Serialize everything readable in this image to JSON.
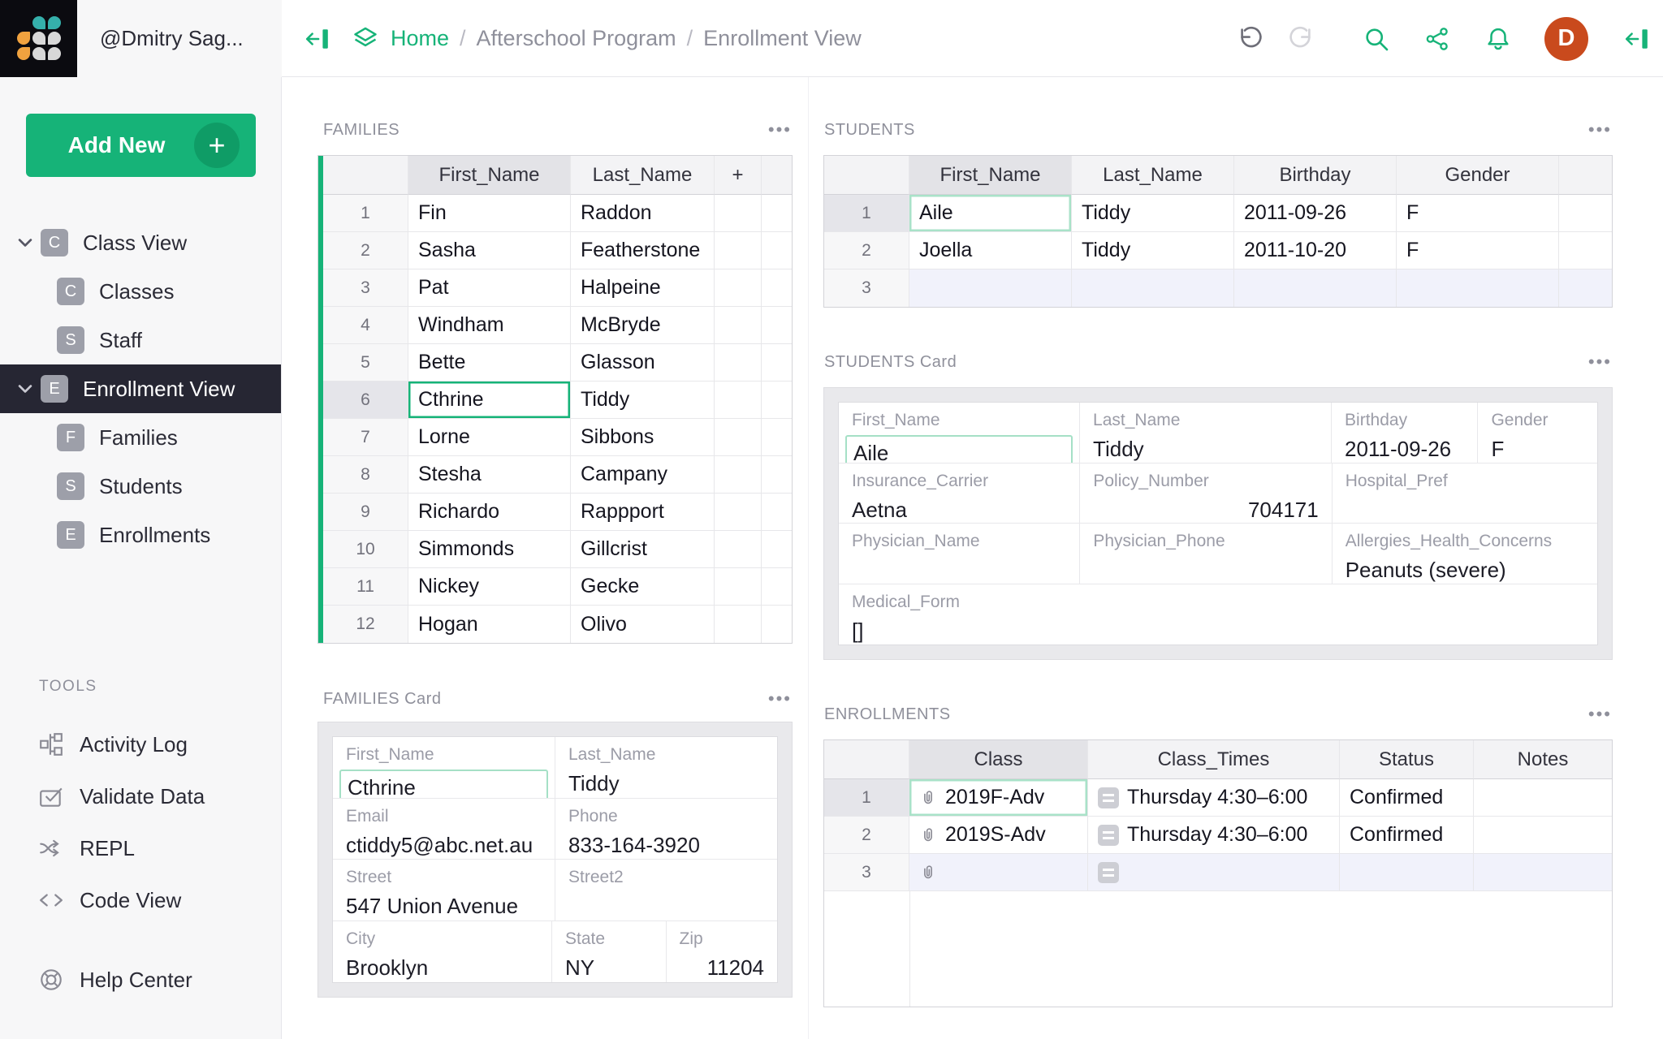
{
  "app": {
    "user_handle": "@Dmitry Sag...",
    "avatar_initial": "D"
  },
  "breadcrumb": {
    "home": "Home",
    "separator": "/",
    "path": [
      "Afterschool Program",
      "Enrollment View"
    ]
  },
  "icons": {
    "section_menu": "•••",
    "add_new_plus": "+"
  },
  "colors": {
    "accent_green": "#16b378",
    "selection_inactive": "#a9e2c8",
    "sidebar_selected_bg": "#262633",
    "avatar_bg": "#c94a1d",
    "logo_teal": "#35b0ab",
    "logo_orange": "#f0a23f",
    "logo_gray": "#d8d8d8",
    "new_row_bg": "#f1f2fb"
  },
  "sidebar": {
    "add_new_label": "Add New",
    "tools_heading": "TOOLS",
    "pages": [
      {
        "label": "Class View",
        "initial": "C",
        "level": 0,
        "expanded": true,
        "selected": false
      },
      {
        "label": "Classes",
        "initial": "C",
        "level": 1,
        "selected": false
      },
      {
        "label": "Staff",
        "initial": "S",
        "level": 1,
        "selected": false
      },
      {
        "label": "Enrollment View",
        "initial": "E",
        "level": 0,
        "expanded": true,
        "selected": true
      },
      {
        "label": "Families",
        "initial": "F",
        "level": 1,
        "selected": false
      },
      {
        "label": "Students",
        "initial": "S",
        "level": 1,
        "selected": false
      },
      {
        "label": "Enrollments",
        "initial": "E",
        "level": 1,
        "selected": false
      }
    ],
    "tools": [
      {
        "label": "Activity Log",
        "icon": "activity-log"
      },
      {
        "label": "Validate Data",
        "icon": "validate-data"
      },
      {
        "label": "REPL",
        "icon": "repl"
      },
      {
        "label": "Code View",
        "icon": "code-view"
      },
      {
        "label": "Help Center",
        "icon": "help-center",
        "gap_above": true
      }
    ]
  },
  "families": {
    "title": "FAMILIES",
    "columns": [
      {
        "name": "First_Name",
        "selected": true
      },
      {
        "name": "Last_Name"
      },
      {
        "name": "+"
      }
    ],
    "rows": [
      [
        "Fin",
        "Raddon"
      ],
      [
        "Sasha",
        "Featherstone"
      ],
      [
        "Pat",
        "Halpeine"
      ],
      [
        "Windham",
        "McBryde"
      ],
      [
        "Bette",
        "Glasson"
      ],
      [
        "Cthrine",
        "Tiddy"
      ],
      [
        "Lorne",
        "Sibbons"
      ],
      [
        "Stesha",
        "Campany"
      ],
      [
        "Richardo",
        "Rappport"
      ],
      [
        "Simmonds",
        "Gillcrist"
      ],
      [
        "Nickey",
        "Gecke"
      ],
      [
        "Hogan",
        "Olivo"
      ]
    ],
    "cursor": {
      "row": 5,
      "col": 0,
      "active": true
    }
  },
  "students": {
    "title": "STUDENTS",
    "columns": [
      {
        "name": "First_Name",
        "selected": true
      },
      {
        "name": "Last_Name"
      },
      {
        "name": "Birthday"
      },
      {
        "name": "Gender"
      }
    ],
    "rows": [
      [
        "Aile",
        "Tiddy",
        "2011-09-26",
        "F"
      ],
      [
        "Joella",
        "Tiddy",
        "2011-10-20",
        "F"
      ]
    ],
    "new_row": true,
    "cursor": {
      "row": 0,
      "col": 0,
      "active": false
    }
  },
  "students_card": {
    "title": "STUDENTS Card",
    "rows": [
      [
        {
          "label": "First_Name",
          "value": "Aile",
          "cursor": true
        },
        {
          "label": "Last_Name",
          "value": "Tiddy"
        },
        {
          "label": "Birthday",
          "value": "2011-09-26"
        },
        {
          "label": "Gender",
          "value": "F"
        }
      ],
      [
        {
          "label": "Insurance_Carrier",
          "value": "Aetna"
        },
        {
          "label": "Policy_Number",
          "value": "704171",
          "align": "right"
        },
        {
          "label": "Hospital_Pref",
          "value": ""
        }
      ],
      [
        {
          "label": "Physician_Name",
          "value": ""
        },
        {
          "label": "Physician_Phone",
          "value": ""
        },
        {
          "label": "Allergies_Health_Concerns",
          "value": "Peanuts (severe)"
        }
      ],
      [
        {
          "label": "Medical_Form",
          "value": "[]"
        }
      ]
    ]
  },
  "families_card": {
    "title": "FAMILIES Card",
    "rows": [
      [
        {
          "label": "First_Name",
          "value": "Cthrine",
          "cursor": true
        },
        {
          "label": "Last_Name",
          "value": "Tiddy"
        }
      ],
      [
        {
          "label": "Email",
          "value": "ctiddy5@abc.net.au"
        },
        {
          "label": "Phone",
          "value": "833-164-3920"
        }
      ],
      [
        {
          "label": "Street",
          "value": "547 Union Avenue"
        },
        {
          "label": "Street2",
          "value": ""
        }
      ],
      [
        {
          "label": "City",
          "value": "Brooklyn"
        },
        {
          "label": "State",
          "value": "NY"
        },
        {
          "label": "Zip",
          "value": "11204",
          "align": "right"
        }
      ]
    ]
  },
  "enrollments": {
    "title": "ENROLLMENTS",
    "columns": [
      {
        "name": "Class",
        "selected": true,
        "icon": "link"
      },
      {
        "name": "Class_Times",
        "icon": "choice"
      },
      {
        "name": "Status"
      },
      {
        "name": "Notes"
      }
    ],
    "rows": [
      [
        "2019F-Adv",
        "Thursday 4:30–6:00",
        "Confirmed",
        ""
      ],
      [
        "2019S-Adv",
        "Thursday 4:30–6:00",
        "Confirmed",
        ""
      ]
    ],
    "new_row": true,
    "cursor": {
      "row": 0,
      "col": 0,
      "active": false
    }
  }
}
